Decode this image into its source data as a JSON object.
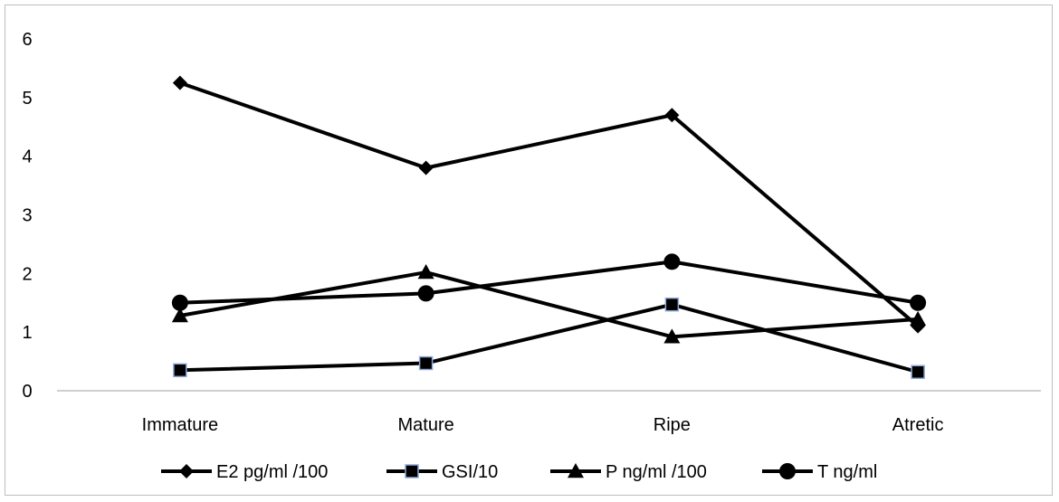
{
  "chart_data": {
    "type": "line",
    "categories": [
      "Immature",
      "Mature",
      "Ripe",
      "Atretic"
    ],
    "ylim": [
      0,
      6
    ],
    "yticks": [
      0,
      1,
      2,
      3,
      4,
      5,
      6
    ],
    "grid": false,
    "legend_position": "bottom",
    "series": [
      {
        "name": "E2 pg/ml /100",
        "marker": "diamond",
        "values": [
          5.25,
          3.8,
          4.7,
          1.1
        ]
      },
      {
        "name": "GSI/10",
        "marker": "square",
        "values": [
          0.35,
          0.47,
          1.47,
          0.32
        ]
      },
      {
        "name": "P ng/ml /100",
        "marker": "triangle",
        "values": [
          1.28,
          2.02,
          0.92,
          1.22
        ]
      },
      {
        "name": "T ng/ml",
        "marker": "circle",
        "values": [
          1.5,
          1.66,
          2.2,
          1.5
        ]
      }
    ],
    "colors": {
      "line": "#000000",
      "square_outline": "#8ea9db",
      "axis": "#bfbfbf"
    }
  }
}
